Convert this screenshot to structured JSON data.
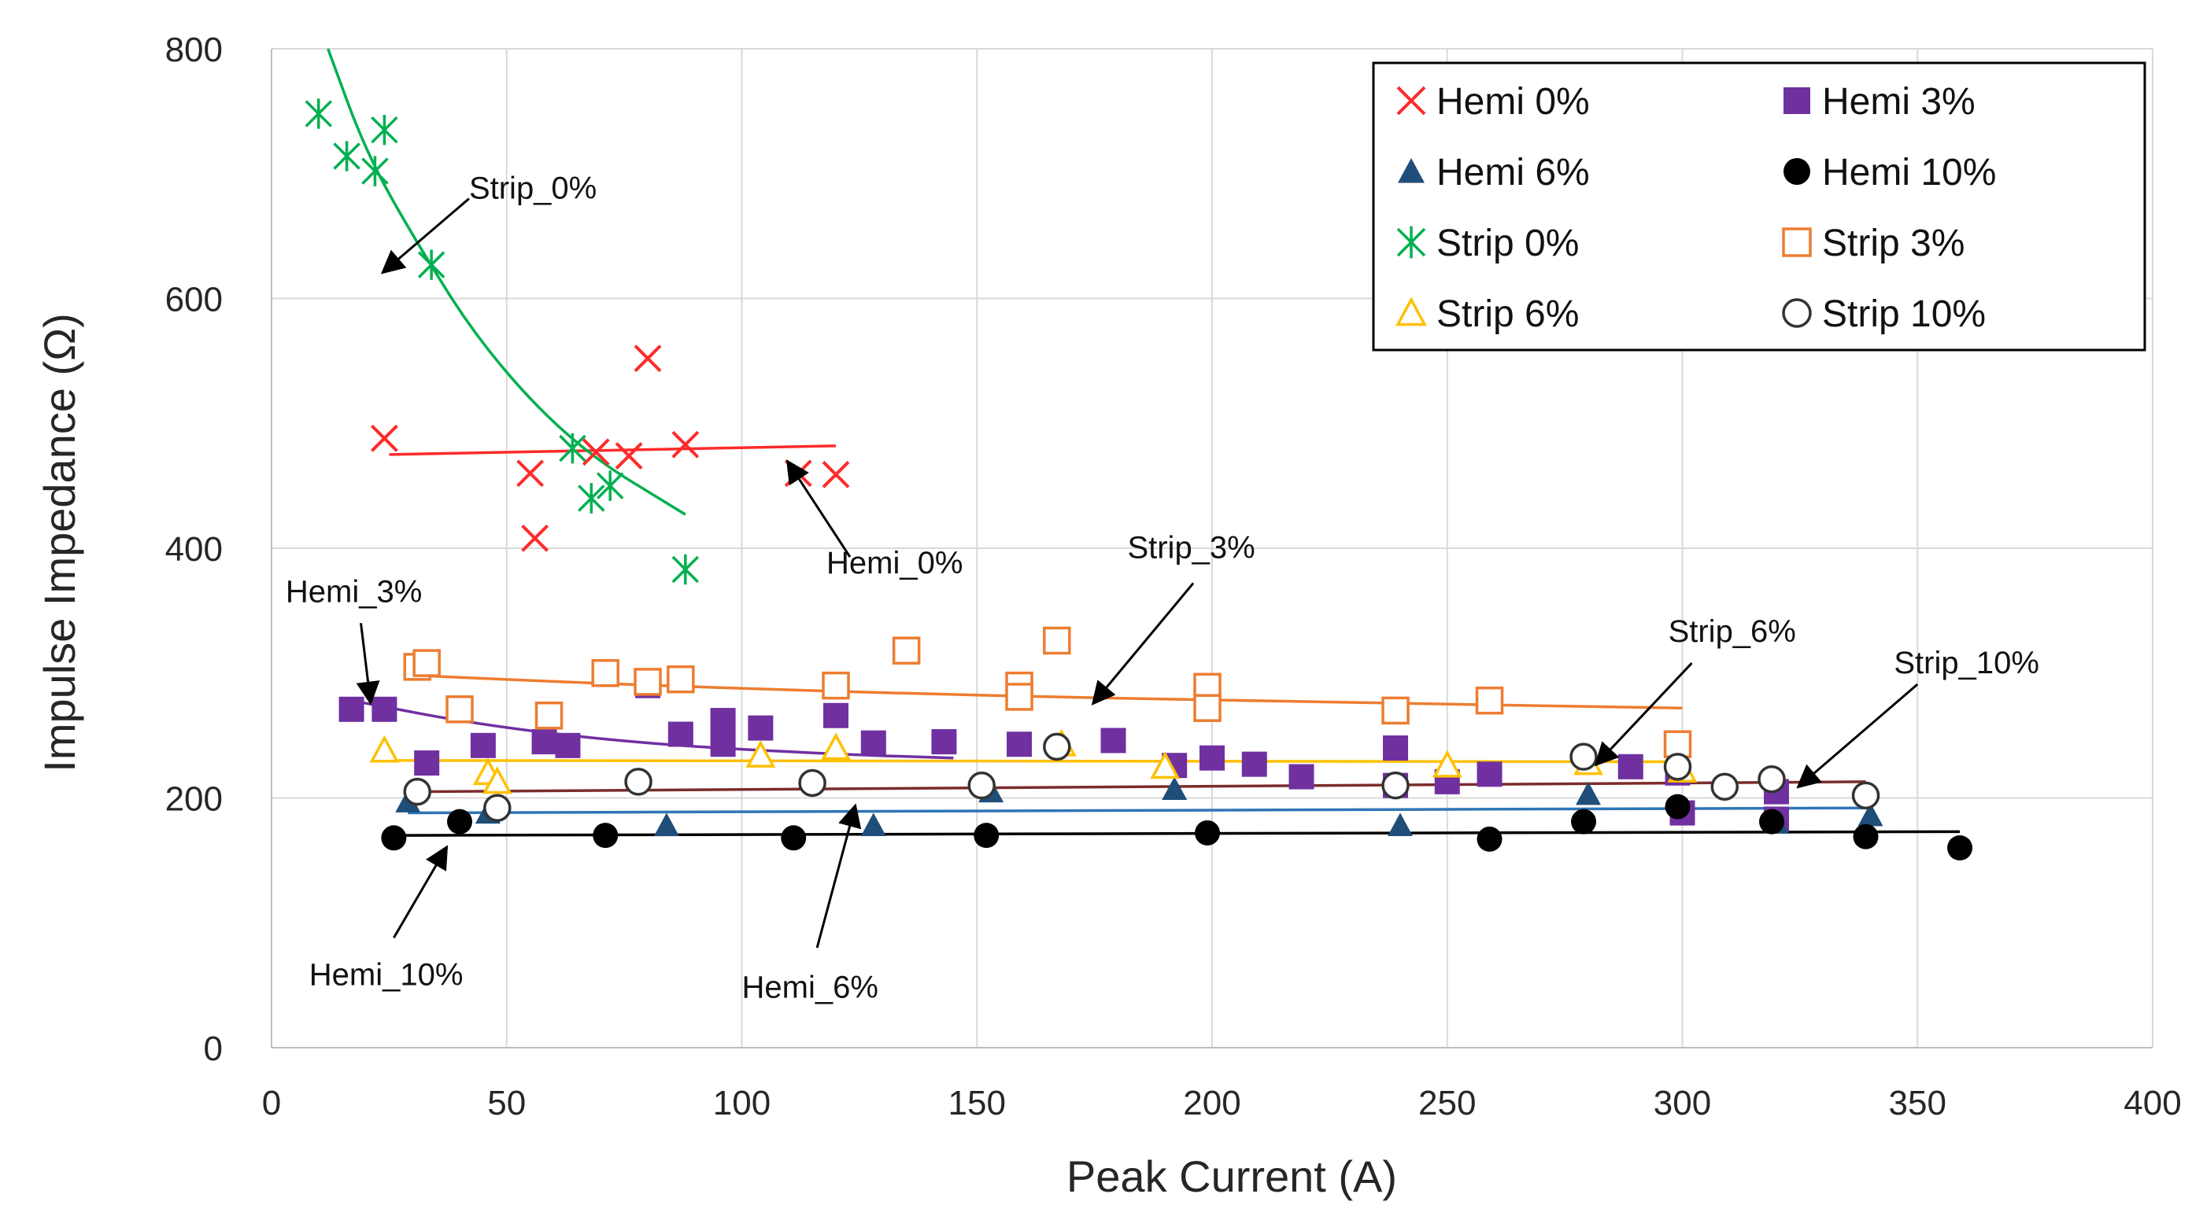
{
  "chart_data": {
    "type": "scatter",
    "xlabel": "Peak Current (A)",
    "ylabel": "Impulse Impedance (Ω)",
    "xlim": [
      0,
      400
    ],
    "ylim": [
      0,
      800
    ],
    "xticks": [
      "0",
      "50",
      "100",
      "150",
      "200",
      "250",
      "300",
      "350",
      "400"
    ],
    "yticks": [
      "0",
      "200",
      "400",
      "600",
      "800"
    ],
    "grid": true,
    "legend_position": "top-right",
    "series": [
      {
        "name": "Hemi 0%",
        "marker": "x",
        "color": "#ff2a2a",
        "points": [
          [
            24,
            488
          ],
          [
            55,
            460
          ],
          [
            56,
            408
          ],
          [
            69,
            477
          ],
          [
            76,
            474
          ],
          [
            80,
            552
          ],
          [
            88,
            483
          ],
          [
            112,
            460
          ],
          [
            120,
            459
          ]
        ],
        "trend": {
          "kind": "linear",
          "from": [
            25,
            475
          ],
          "to": [
            120,
            482
          ]
        }
      },
      {
        "name": "Hemi 3%",
        "marker": "square-filled",
        "color": "#7030a0",
        "points": [
          [
            17,
            271
          ],
          [
            24,
            271
          ],
          [
            33,
            228
          ],
          [
            45,
            242
          ],
          [
            58,
            245
          ],
          [
            63,
            242
          ],
          [
            80,
            290
          ],
          [
            87,
            251
          ],
          [
            96,
            262
          ],
          [
            96,
            243
          ],
          [
            104,
            256
          ],
          [
            120,
            266
          ],
          [
            128,
            244
          ],
          [
            143,
            245
          ],
          [
            159,
            243
          ],
          [
            179,
            246
          ],
          [
            192,
            226
          ],
          [
            200,
            232
          ],
          [
            209,
            227
          ],
          [
            219,
            217
          ],
          [
            239,
            240
          ],
          [
            239,
            210
          ],
          [
            250,
            213
          ],
          [
            259,
            219
          ],
          [
            289,
            225
          ],
          [
            299,
            220
          ],
          [
            300,
            188
          ],
          [
            320,
            205
          ],
          [
            320,
            183
          ]
        ],
        "trend": {
          "kind": "curve",
          "points": [
            [
              17,
              278
            ],
            [
              45,
              258
            ],
            [
              80,
              243
            ],
            [
              120,
              235
            ],
            [
              145,
              232
            ]
          ]
        }
      },
      {
        "name": "Hemi 6%",
        "marker": "triangle-filled",
        "color": "#1f4e79",
        "points": [
          [
            29,
            197
          ],
          [
            46,
            188
          ],
          [
            84,
            178
          ],
          [
            128,
            178
          ],
          [
            153,
            205
          ],
          [
            192,
            207
          ],
          [
            240,
            178
          ],
          [
            280,
            203
          ],
          [
            320,
            180
          ],
          [
            340,
            186
          ]
        ],
        "trend": {
          "kind": "linear",
          "from": [
            29,
            188
          ],
          "to": [
            340,
            192
          ]
        }
      },
      {
        "name": "Hemi 10%",
        "marker": "circle-filled",
        "color": "#000000",
        "points": [
          [
            26,
            168
          ],
          [
            40,
            181
          ],
          [
            71,
            170
          ],
          [
            111,
            168
          ],
          [
            152,
            170
          ],
          [
            199,
            172
          ],
          [
            239,
            210
          ],
          [
            259,
            167
          ],
          [
            279,
            181
          ],
          [
            299,
            193
          ],
          [
            319,
            181
          ],
          [
            339,
            169
          ],
          [
            359,
            160
          ]
        ],
        "trend": {
          "kind": "linear",
          "from": [
            26,
            170
          ],
          "to": [
            359,
            173
          ]
        }
      },
      {
        "name": "Strip 0%",
        "marker": "star",
        "color": "#00b050",
        "points": [
          [
            10,
            748
          ],
          [
            16,
            714
          ],
          [
            22,
            702
          ],
          [
            24,
            735
          ],
          [
            34,
            627
          ],
          [
            64,
            480
          ],
          [
            68,
            440
          ],
          [
            72,
            450
          ],
          [
            88,
            383
          ]
        ],
        "trend": {
          "kind": "curve",
          "points": [
            [
              12,
              800
            ],
            [
              20,
              718
            ],
            [
              30,
              650
            ],
            [
              45,
              560
            ],
            [
              65,
              480
            ],
            [
              88,
              427
            ]
          ]
        }
      },
      {
        "name": "Strip 3%",
        "marker": "square-open",
        "color": "#ed7d31",
        "points": [
          [
            31,
            305
          ],
          [
            33,
            308
          ],
          [
            40,
            271
          ],
          [
            59,
            266
          ],
          [
            71,
            300
          ],
          [
            80,
            293
          ],
          [
            87,
            295
          ],
          [
            120,
            290
          ],
          [
            135,
            318
          ],
          [
            159,
            290
          ],
          [
            159,
            281
          ],
          [
            167,
            326
          ],
          [
            199,
            289
          ],
          [
            199,
            272
          ],
          [
            239,
            270
          ],
          [
            259,
            278
          ],
          [
            299,
            243
          ]
        ],
        "trend": {
          "kind": "curve",
          "points": [
            [
              31,
              298
            ],
            [
              80,
              290
            ],
            [
              150,
              282
            ],
            [
              220,
              277
            ],
            [
              300,
              272
            ]
          ]
        }
      },
      {
        "name": "Strip 6%",
        "marker": "triangle-open",
        "color": "#ffc000",
        "points": [
          [
            24,
            238
          ],
          [
            46,
            220
          ],
          [
            48,
            213
          ],
          [
            104,
            234
          ],
          [
            120,
            240
          ],
          [
            168,
            243
          ],
          [
            190,
            225
          ],
          [
            250,
            226
          ],
          [
            280,
            228
          ],
          [
            300,
            222
          ]
        ],
        "trend": {
          "kind": "linear",
          "from": [
            24,
            230
          ],
          "to": [
            300,
            229
          ]
        }
      },
      {
        "name": "Strip 10%",
        "marker": "circle-open",
        "color": "#333333",
        "points": [
          [
            31,
            205
          ],
          [
            48,
            192
          ],
          [
            78,
            213
          ],
          [
            115,
            212
          ],
          [
            151,
            210
          ],
          [
            167,
            241
          ],
          [
            239,
            210
          ],
          [
            279,
            233
          ],
          [
            299,
            225
          ],
          [
            309,
            209
          ],
          [
            319,
            215
          ],
          [
            339,
            202
          ]
        ],
        "trend": {
          "kind": "linear",
          "from": [
            31,
            205
          ],
          "to": [
            339,
            213
          ]
        }
      }
    ],
    "trend_colors": {
      "Hemi 0%": "#ff2a2a",
      "Hemi 3%": "#7030a0",
      "Hemi 6%": "#2e75b6",
      "Hemi 10%": "#000000",
      "Strip 0%": "#00b050",
      "Strip 3%": "#ed7d31",
      "Strip 6%": "#ffc000",
      "Strip 10%": "#7b2c2c"
    },
    "annotations": [
      {
        "text": "Strip_0%",
        "label_at": [
          42,
          680
        ],
        "arrow_from": [
          42,
          680
        ],
        "arrow_to": [
          24,
          622
        ],
        "anchor": "start"
      },
      {
        "text": "Hemi_0%",
        "label_at": [
          118,
          380
        ],
        "arrow_from": [
          123,
          393
        ],
        "arrow_to": [
          110,
          468
        ],
        "anchor": "start"
      },
      {
        "text": "Strip_3%",
        "label_at": [
          182,
          392
        ],
        "arrow_from": [
          196,
          372
        ],
        "arrow_to": [
          175,
          277
        ],
        "anchor": "start"
      },
      {
        "text": "Hemi_3%",
        "label_at": [
          3,
          357
        ],
        "arrow_from": [
          19,
          340
        ],
        "arrow_to": [
          21,
          278
        ],
        "anchor": "start"
      },
      {
        "text": "Strip_6%",
        "label_at": [
          297,
          325
        ],
        "arrow_from": [
          302,
          308
        ],
        "arrow_to": [
          282,
          228
        ],
        "anchor": "start"
      },
      {
        "text": "Strip_10%",
        "label_at": [
          345,
          300
        ],
        "arrow_from": [
          350,
          291
        ],
        "arrow_to": [
          325,
          210
        ],
        "anchor": "start"
      },
      {
        "text": "Hemi_10%",
        "label_at": [
          8,
          50
        ],
        "arrow_from": [
          26,
          88
        ],
        "arrow_to": [
          37,
          159
        ],
        "anchor": "start"
      },
      {
        "text": "Hemi_6%",
        "label_at": [
          100,
          40
        ],
        "arrow_from": [
          116,
          80
        ],
        "arrow_to": [
          124,
          192
        ],
        "anchor": "start"
      }
    ]
  }
}
